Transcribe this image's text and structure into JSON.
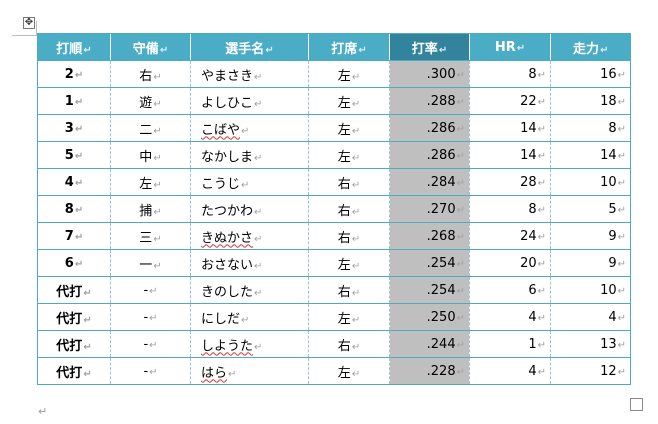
{
  "marks": {
    "cell": "↵",
    "move": "✥",
    "paragraph": "↵"
  },
  "headers": [
    "打順",
    "守備",
    "選手名",
    "打席",
    "打率",
    "HR",
    "走力"
  ],
  "selected_column": 4,
  "colors": {
    "header": "#4bacc6",
    "header_selected": "#31849b",
    "selected_cells": "#bfbfbf"
  },
  "rows": [
    {
      "order": "2",
      "pos": "右",
      "name": "やまさき",
      "bats": "左",
      "avg": ".300",
      "hr": "8",
      "speed": "16",
      "spell": false
    },
    {
      "order": "1",
      "pos": "遊",
      "name": "よしひこ",
      "bats": "左",
      "avg": ".288",
      "hr": "22",
      "speed": "18",
      "spell": false
    },
    {
      "order": "3",
      "pos": "二",
      "name": "こばや",
      "bats": "左",
      "avg": ".286",
      "hr": "14",
      "speed": "8",
      "spell": true
    },
    {
      "order": "5",
      "pos": "中",
      "name": "なかしま",
      "bats": "左",
      "avg": ".286",
      "hr": "14",
      "speed": "14",
      "spell": false
    },
    {
      "order": "4",
      "pos": "左",
      "name": "こうじ",
      "bats": "右",
      "avg": ".284",
      "hr": "28",
      "speed": "10",
      "spell": false
    },
    {
      "order": "8",
      "pos": "捕",
      "name": "たつかわ",
      "bats": "右",
      "avg": ".270",
      "hr": "8",
      "speed": "5",
      "spell": false
    },
    {
      "order": "7",
      "pos": "三",
      "name": "きぬかさ",
      "bats": "右",
      "avg": ".268",
      "hr": "24",
      "speed": "9",
      "spell": true
    },
    {
      "order": "6",
      "pos": "一",
      "name": "おさない",
      "bats": "左",
      "avg": ".254",
      "hr": "20",
      "speed": "9",
      "spell": false
    },
    {
      "order": "代打",
      "pos": "-",
      "name": "きのした",
      "bats": "右",
      "avg": ".254",
      "hr": "6",
      "speed": "10",
      "spell": false
    },
    {
      "order": "代打",
      "pos": "-",
      "name": "にしだ",
      "bats": "左",
      "avg": ".250",
      "hr": "4",
      "speed": "4",
      "spell": false
    },
    {
      "order": "代打",
      "pos": "-",
      "name": "しようた",
      "bats": "右",
      "avg": ".244",
      "hr": "1",
      "speed": "13",
      "spell": true
    },
    {
      "order": "代打",
      "pos": "-",
      "name": "はら",
      "bats": "左",
      "avg": ".228",
      "hr": "4",
      "speed": "12",
      "spell": true
    }
  ]
}
